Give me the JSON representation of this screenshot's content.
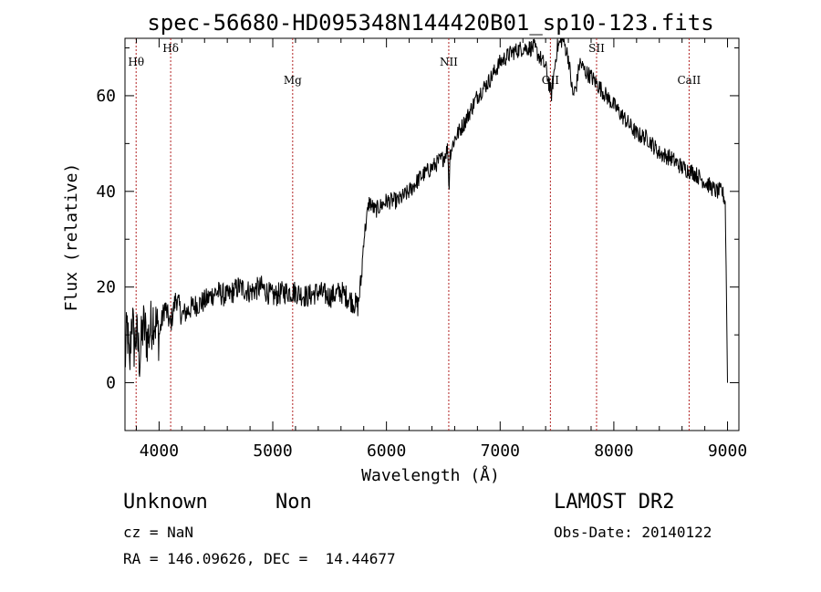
{
  "chart_data": {
    "type": "line",
    "title": "spec-56680-HD095348N144420B01_sp10-123.fits",
    "xlabel": "Wavelength (Å)",
    "ylabel": "Flux (relative)",
    "xlim": [
      3700,
      9100
    ],
    "ylim": [
      -10,
      72
    ],
    "x_ticks": [
      4000,
      5000,
      6000,
      7000,
      8000,
      9000
    ],
    "y_ticks": [
      0,
      20,
      40,
      60
    ],
    "x_tick_labels": [
      "4000",
      "5000",
      "6000",
      "7000",
      "8000",
      "9000"
    ],
    "y_tick_labels": [
      "0",
      "20",
      "40",
      "60"
    ],
    "grid": false,
    "series": [
      {
        "x": [
          3700,
          3720,
          3740,
          3760,
          3780,
          3800,
          3830,
          3860,
          3900,
          3950,
          4000,
          4050,
          4100,
          4150,
          4200,
          4300,
          4400,
          4500,
          4600,
          4700,
          4800,
          4900,
          5000,
          5100,
          5200,
          5300,
          5400,
          5500,
          5600,
          5700,
          5750,
          5780,
          5800,
          5830,
          5850,
          5870,
          5900,
          6000,
          6100,
          6200,
          6300,
          6400,
          6500,
          6540,
          6550,
          6560,
          6600,
          6700,
          6800,
          6900,
          7000,
          7100,
          7200,
          7300,
          7350,
          7400,
          7450,
          7500,
          7550,
          7600,
          7640,
          7670,
          7700,
          7750,
          7800,
          7900,
          8000,
          8100,
          8200,
          8300,
          8400,
          8500,
          8600,
          8700,
          8800,
          8900,
          8950,
          8980,
          8990,
          9000
        ],
        "y": [
          4,
          12,
          2,
          15,
          8,
          10,
          5,
          12,
          9,
          14,
          10,
          16,
          12,
          18,
          14,
          16,
          17,
          19,
          18,
          20,
          19,
          20,
          18,
          19,
          19,
          18,
          19,
          18,
          19,
          17,
          16,
          22,
          30,
          35,
          38,
          37,
          36,
          38,
          38,
          40,
          43,
          45,
          47,
          49,
          40,
          48,
          51,
          55,
          60,
          63,
          67,
          69,
          70,
          70,
          68,
          66,
          60,
          70,
          72,
          68,
          60,
          62,
          67,
          65,
          64,
          61,
          58,
          55,
          52,
          51,
          48,
          47,
          45,
          44,
          42,
          40,
          40,
          38,
          20,
          0
        ]
      }
    ],
    "lines": [
      {
        "label": "Hθ",
        "x": 3798
      },
      {
        "label": "Hδ",
        "x": 4102
      },
      {
        "label": "Mg",
        "x": 5175
      },
      {
        "label": "NII",
        "x": 6548
      },
      {
        "label": "OII",
        "x": 7442
      },
      {
        "label": "SII",
        "x": 7848
      },
      {
        "label": "CaII",
        "x": 8662
      }
    ]
  },
  "info": {
    "class_label": "Unknown",
    "subclass_label": "Non",
    "survey": "LAMOST DR2",
    "cz": "cz = NaN",
    "obs_date": "Obs-Date: 20140122",
    "coords": "RA = 146.09626, DEC =  14.44677"
  }
}
